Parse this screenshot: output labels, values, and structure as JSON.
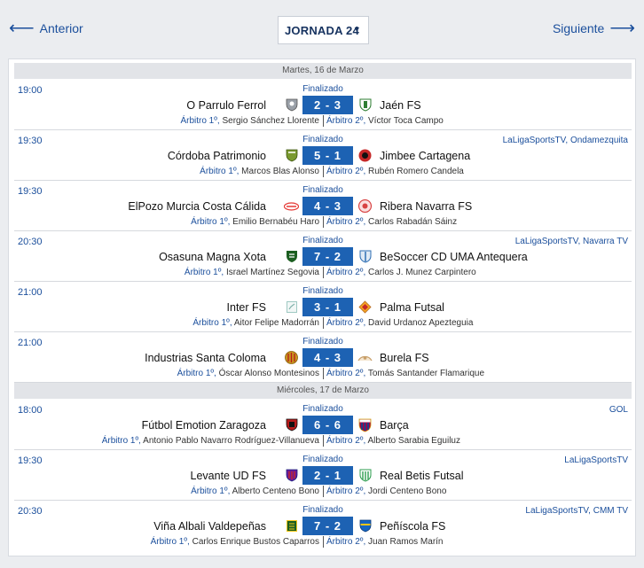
{
  "nav": {
    "prev_label": "Anterior",
    "next_label": "Siguiente",
    "round_selected": "JORNADA 24"
  },
  "days": [
    {
      "label": "Martes, 16 de Marzo"
    },
    {
      "label": "Miércoles, 17 de Marzo"
    }
  ],
  "ref1_label": "Árbitro 1º,",
  "ref2_label": "Árbitro 2º,",
  "matches": [
    {
      "time": "19:00",
      "status": "Finalizado",
      "tv": "",
      "home": "O Parrulo Ferrol",
      "away": "Jaén FS",
      "score": "2 - 3",
      "ref1": "Sergio Sánchez Llorente",
      "ref2": "Víctor Toca Campo"
    },
    {
      "time": "19:30",
      "status": "Finalizado",
      "tv": "LaLigaSportsTV, Ondamezquita",
      "home": "Córdoba Patrimonio",
      "away": "Jimbee Cartagena",
      "score": "5 - 1",
      "ref1": "Marcos Blas Alonso",
      "ref2": "Rubén Romero Candela"
    },
    {
      "time": "19:30",
      "status": "Finalizado",
      "tv": "",
      "home": "ElPozo Murcia Costa Cálida",
      "away": "Ribera Navarra FS",
      "score": "4 - 3",
      "ref1": "Emilio Bernabéu Haro",
      "ref2": "Carlos Rabadán Sáinz"
    },
    {
      "time": "20:30",
      "status": "Finalizado",
      "tv": "LaLigaSportsTV, Navarra TV",
      "home": "Osasuna Magna Xota",
      "away": "BeSoccer CD UMA Antequera",
      "score": "7 - 2",
      "ref1": "Israel Martínez Segovia",
      "ref2": "Carlos J. Munez Carpintero"
    },
    {
      "time": "21:00",
      "status": "Finalizado",
      "tv": "",
      "home": "Inter FS",
      "away": "Palma Futsal",
      "score": "3 - 1",
      "ref1": "Aitor Felipe Madorrán",
      "ref2": "David Urdanoz Apezteguia"
    },
    {
      "time": "21:00",
      "status": "Finalizado",
      "tv": "",
      "home": "Industrias Santa Coloma",
      "away": "Burela FS",
      "score": "4 - 3",
      "ref1": "Óscar Alonso Montesinos",
      "ref2": "Tomás Santander Flamarique"
    },
    {
      "time": "18:00",
      "status": "Finalizado",
      "tv": "GOL",
      "home": "Fútbol Emotion Zaragoza",
      "away": "Barça",
      "score": "6 - 6",
      "ref1": "Antonio Pablo Navarro Rodríguez-Villanueva",
      "ref2": "Alberto Sarabia Eguiluz"
    },
    {
      "time": "19:30",
      "status": "Finalizado",
      "tv": "LaLigaSportsTV",
      "home": "Levante UD FS",
      "away": "Real Betis Futsal",
      "score": "2 - 1",
      "ref1": "Alberto Centeno Bono",
      "ref2": "Jordi Centeno Bono"
    },
    {
      "time": "20:30",
      "status": "Finalizado",
      "tv": "LaLigaSportsTV, CMM TV",
      "home": "Viña Albali Valdepeñas",
      "away": "Peñíscola FS",
      "score": "7 - 2",
      "ref1": "Carlos Enrique Bustos Caparros",
      "ref2": "Juan Ramos Marín"
    }
  ],
  "crest_colors": {
    "parrulo": "#9aa0a8",
    "jaen": "#2e7d32",
    "cordoba": "#7a9a2e",
    "cartagena": "#c62828",
    "elpozo": "#e53935",
    "ribera": "#d84343",
    "osasuna": "#1b5e20",
    "antequera": "#2f6fb3",
    "inter": "#9fc9c3",
    "palma": "#f5a623",
    "santacoloma": "#c8961e",
    "burela": "#c8a06b",
    "zaragoza": "#b71c1c",
    "barca": "#a50044",
    "levante": "#6a1b9a",
    "betis": "#2e9e4f",
    "valdepenas": "#1b5e20",
    "peniscola": "#1565c0"
  }
}
